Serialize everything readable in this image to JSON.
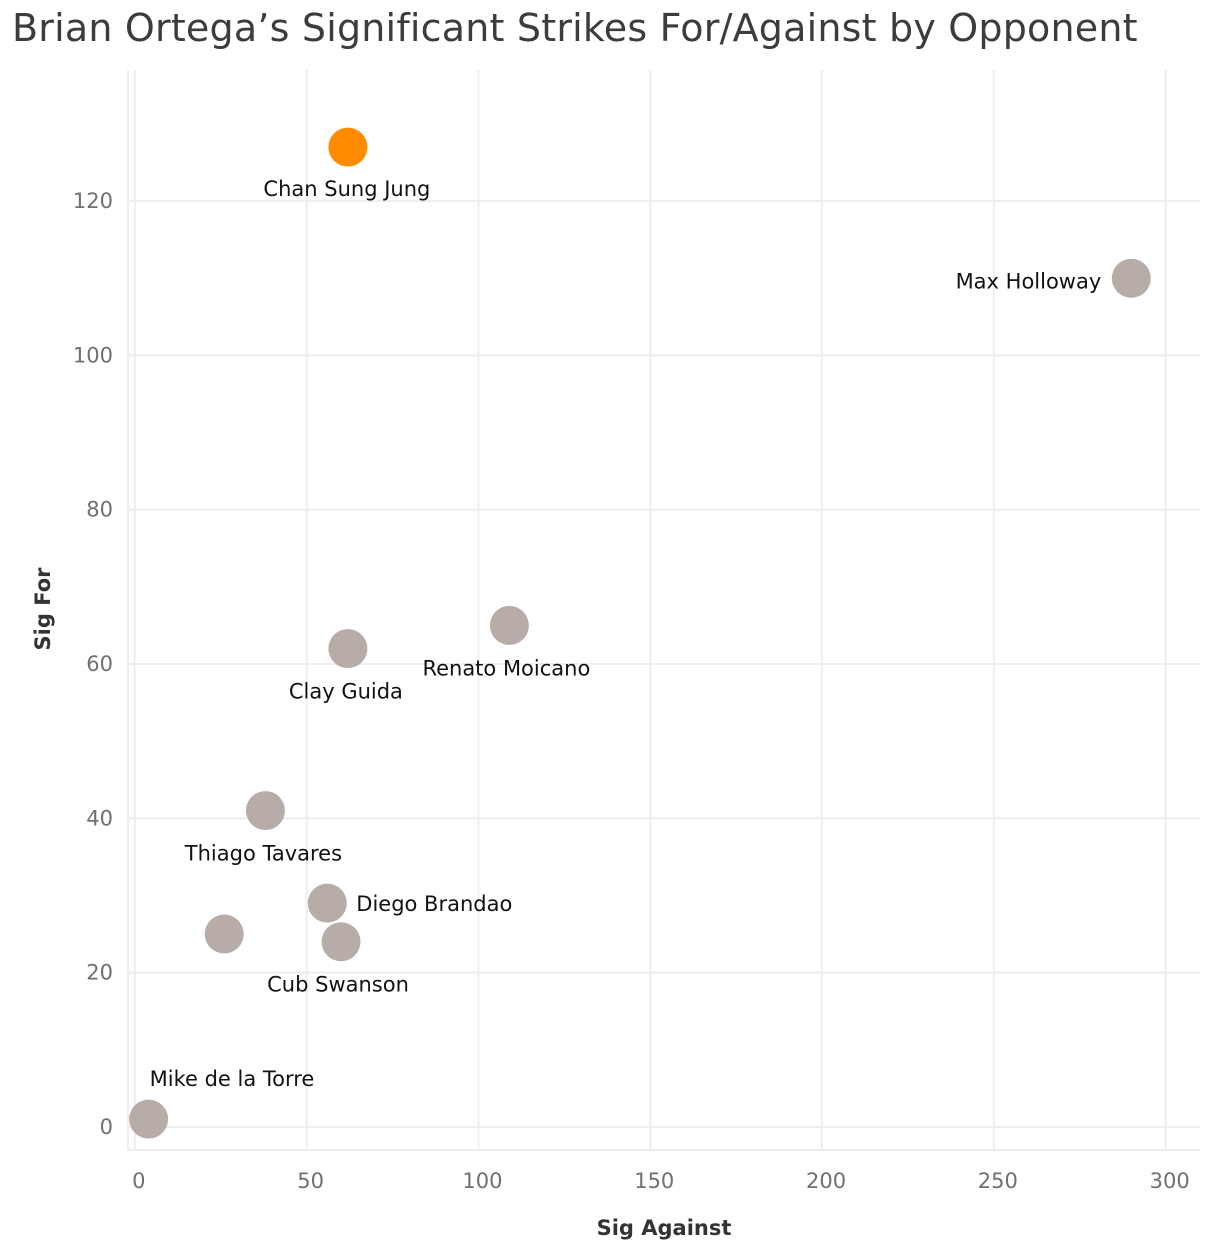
{
  "title": "Brian Ortega’s Significant Strikes For/Against by Opponent",
  "colors": {
    "highlight": "#ff8c00",
    "default": "#b8aca8",
    "grid": "#eeeeee"
  },
  "chart_data": {
    "type": "scatter",
    "title": "Brian Ortega’s Significant Strikes For/Against by Opponent",
    "xlabel": "Sig Against",
    "ylabel": "Sig For",
    "xlim": [
      -2,
      310
    ],
    "ylim": [
      -3,
      137
    ],
    "xticks": [
      0,
      50,
      100,
      150,
      200,
      250,
      300
    ],
    "yticks": [
      0,
      20,
      40,
      60,
      80,
      100,
      120
    ],
    "grid": true,
    "points": [
      {
        "x": 62,
        "y": 127,
        "label": "Chan Sung Jung",
        "highlight": true
      },
      {
        "x": 290,
        "y": 110,
        "label": "Max Holloway",
        "highlight": false
      },
      {
        "x": 109,
        "y": 65,
        "label": "Renato Moicano",
        "highlight": false
      },
      {
        "x": 62,
        "y": 62,
        "label": "Clay Guida",
        "highlight": false
      },
      {
        "x": 38,
        "y": 41,
        "label": "Thiago Tavares",
        "highlight": false
      },
      {
        "x": 56,
        "y": 29,
        "label": "Diego Brandao",
        "highlight": false
      },
      {
        "x": 26,
        "y": 25,
        "label": "",
        "highlight": false
      },
      {
        "x": 60,
        "y": 24,
        "label": "Cub Swanson",
        "highlight": false
      },
      {
        "x": 4,
        "y": 1,
        "label": "Mike de la Torre",
        "highlight": false
      }
    ]
  }
}
